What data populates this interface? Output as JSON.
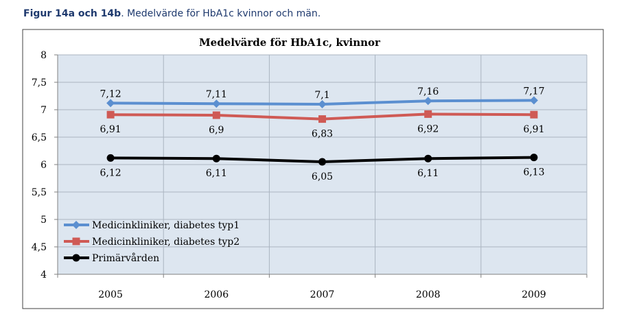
{
  "caption": {
    "bold": "Figur 14a och 14b",
    "rest": ". Medelvärde för HbA1c  kvinnor och män."
  },
  "chart_data": {
    "type": "line",
    "title": "Medelvärde för HbA1c, kvinnor",
    "xlabel": "",
    "ylabel": "",
    "categories": [
      "2005",
      "2006",
      "2007",
      "2008",
      "2009"
    ],
    "ylim": [
      4,
      8
    ],
    "ytick_step": 0.5,
    "yticks": [
      "4",
      "4,5",
      "5",
      "5,5",
      "6",
      "6,5",
      "7",
      "7,5",
      "8"
    ],
    "grid": true,
    "legend_position": "bottom-left",
    "series": [
      {
        "name": "Medicinkliniker, diabetes typ1",
        "values": [
          7.12,
          7.11,
          7.1,
          7.16,
          7.17
        ],
        "labels": [
          "7,12",
          "7,11",
          "7,1",
          "7,16",
          "7,17"
        ],
        "label_position": "above",
        "color": "#5b8fd0",
        "marker": "diamond"
      },
      {
        "name": "Medicinkliniker, diabetes typ2",
        "values": [
          6.91,
          6.9,
          6.83,
          6.92,
          6.91
        ],
        "labels": [
          "6,91",
          "6,9",
          "6,83",
          "6,92",
          "6,91"
        ],
        "label_position": "below",
        "color": "#cf5a55",
        "marker": "square"
      },
      {
        "name": "Primärvården",
        "values": [
          6.12,
          6.11,
          6.05,
          6.11,
          6.13
        ],
        "labels": [
          "6,12",
          "6,11",
          "6,05",
          "6,11",
          "6,13"
        ],
        "label_position": "below",
        "color": "#000000",
        "marker": "circle"
      }
    ],
    "colors": {
      "plot_background": "#dde6f0",
      "grid": "#aab4c0",
      "axis": "#808080",
      "frame": "#404040"
    }
  }
}
